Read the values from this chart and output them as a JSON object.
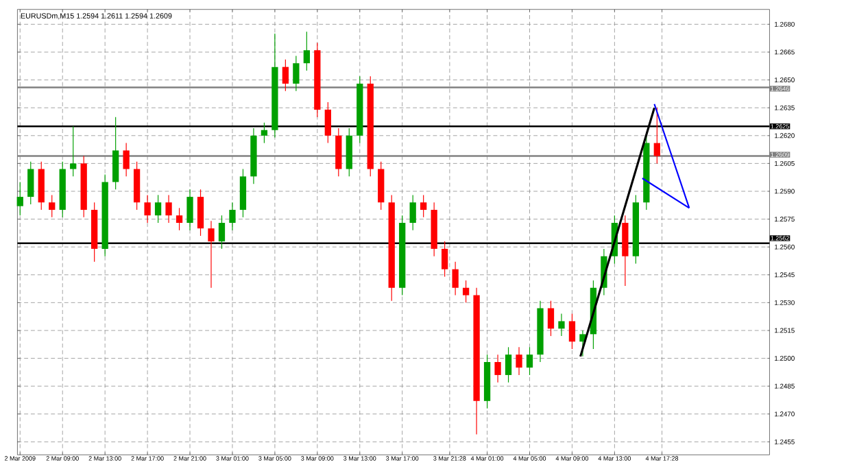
{
  "chart_data": {
    "type": "candlestick",
    "title": "EURUSDm,M15 1.2594 1.2611 1.2594 1.2609",
    "x": [
      "2009-03-02T05:00",
      "2009-03-02T06:00",
      "2009-03-02T07:00",
      "2009-03-02T08:00",
      "2009-03-02T09:00",
      "2009-03-02T10:00",
      "2009-03-02T11:00",
      "2009-03-02T12:00",
      "2009-03-02T13:00",
      "2009-03-02T14:00",
      "2009-03-02T15:00",
      "2009-03-02T16:00",
      "2009-03-02T17:00",
      "2009-03-02T18:00",
      "2009-03-02T19:00",
      "2009-03-02T20:00",
      "2009-03-02T21:00",
      "2009-03-02T22:00",
      "2009-03-02T23:00",
      "2009-03-03T00:00",
      "2009-03-03T01:00",
      "2009-03-03T02:00",
      "2009-03-03T03:00",
      "2009-03-03T04:00",
      "2009-03-03T05:00",
      "2009-03-03T06:00",
      "2009-03-03T07:00",
      "2009-03-03T08:00",
      "2009-03-03T09:00",
      "2009-03-03T10:00",
      "2009-03-03T11:00",
      "2009-03-03T12:00",
      "2009-03-03T13:00",
      "2009-03-03T14:00",
      "2009-03-03T15:00",
      "2009-03-03T16:00",
      "2009-03-03T17:00",
      "2009-03-03T18:00",
      "2009-03-03T19:00",
      "2009-03-03T20:00",
      "2009-03-03T21:00",
      "2009-03-03T22:00",
      "2009-03-03T23:00",
      "2009-03-04T00:00",
      "2009-03-04T01:00",
      "2009-03-04T02:00",
      "2009-03-04T03:00",
      "2009-03-04T04:00",
      "2009-03-04T05:00",
      "2009-03-04T06:00",
      "2009-03-04T07:00",
      "2009-03-04T08:00",
      "2009-03-04T09:00",
      "2009-03-04T10:00",
      "2009-03-04T11:00",
      "2009-03-04T12:00",
      "2009-03-04T13:00",
      "2009-03-04T14:00",
      "2009-03-04T15:00",
      "2009-03-04T16:00",
      "2009-03-04T17:00"
    ],
    "ohlc": [
      [
        1.2582,
        1.2595,
        1.2577,
        1.2587
      ],
      [
        1.2587,
        1.2606,
        1.2583,
        1.2602
      ],
      [
        1.2602,
        1.2606,
        1.258,
        1.2584
      ],
      [
        1.2584,
        1.2588,
        1.2576,
        1.258
      ],
      [
        1.258,
        1.2606,
        1.2576,
        1.2602
      ],
      [
        1.2602,
        1.2625,
        1.2598,
        1.2605
      ],
      [
        1.2605,
        1.2609,
        1.2576,
        1.258
      ],
      [
        1.258,
        1.2584,
        1.2552,
        1.2559
      ],
      [
        1.2559,
        1.2599,
        1.2555,
        1.2595
      ],
      [
        1.2595,
        1.263,
        1.2591,
        1.2612
      ],
      [
        1.2612,
        1.2616,
        1.2598,
        1.2602
      ],
      [
        1.2602,
        1.2606,
        1.258,
        1.2584
      ],
      [
        1.2584,
        1.2588,
        1.2573,
        1.2577
      ],
      [
        1.2577,
        1.2588,
        1.2573,
        1.2584
      ],
      [
        1.2584,
        1.2588,
        1.2573,
        1.2577
      ],
      [
        1.2577,
        1.2581,
        1.2569,
        1.2573
      ],
      [
        1.2573,
        1.2591,
        1.2569,
        1.2587
      ],
      [
        1.2587,
        1.2591,
        1.2566,
        1.257
      ],
      [
        1.257,
        1.2574,
        1.2538,
        1.2563
      ],
      [
        1.2563,
        1.2577,
        1.2559,
        1.2573
      ],
      [
        1.2573,
        1.2584,
        1.2569,
        1.258
      ],
      [
        1.258,
        1.2602,
        1.2576,
        1.2598
      ],
      [
        1.2598,
        1.2624,
        1.2594,
        1.262
      ],
      [
        1.262,
        1.2627,
        1.2616,
        1.2623
      ],
      [
        1.2623,
        1.2675,
        1.2619,
        1.2657
      ],
      [
        1.2657,
        1.2661,
        1.2644,
        1.2648
      ],
      [
        1.2648,
        1.2663,
        1.2644,
        1.2659
      ],
      [
        1.2659,
        1.2676,
        1.2655,
        1.2666
      ],
      [
        1.2666,
        1.267,
        1.263,
        1.2634
      ],
      [
        1.2634,
        1.2638,
        1.2616,
        1.262
      ],
      [
        1.262,
        1.2624,
        1.2598,
        1.2602
      ],
      [
        1.2602,
        1.2624,
        1.2598,
        1.262
      ],
      [
        1.262,
        1.2652,
        1.2616,
        1.2648
      ],
      [
        1.2648,
        1.2652,
        1.2598,
        1.2602
      ],
      [
        1.2602,
        1.2606,
        1.258,
        1.2584
      ],
      [
        1.2584,
        1.2588,
        1.2531,
        1.2538
      ],
      [
        1.2538,
        1.2577,
        1.2534,
        1.2573
      ],
      [
        1.2573,
        1.2588,
        1.2569,
        1.2584
      ],
      [
        1.2584,
        1.2588,
        1.2576,
        1.258
      ],
      [
        1.258,
        1.2584,
        1.2555,
        1.2559
      ],
      [
        1.2559,
        1.2563,
        1.2544,
        1.2548
      ],
      [
        1.2548,
        1.2552,
        1.2534,
        1.2538
      ],
      [
        1.2538,
        1.2542,
        1.253,
        1.2534
      ],
      [
        1.2534,
        1.2538,
        1.2459,
        1.2477
      ],
      [
        1.2477,
        1.2502,
        1.2473,
        1.2498
      ],
      [
        1.2498,
        1.2502,
        1.2487,
        1.2491
      ],
      [
        1.2491,
        1.2506,
        1.2487,
        1.2502
      ],
      [
        1.2502,
        1.2506,
        1.2491,
        1.2495
      ],
      [
        1.2495,
        1.2506,
        1.2491,
        1.2502
      ],
      [
        1.2502,
        1.2531,
        1.2498,
        1.2527
      ],
      [
        1.2527,
        1.2531,
        1.2512,
        1.2516
      ],
      [
        1.2516,
        1.2524,
        1.2512,
        1.252
      ],
      [
        1.252,
        1.2524,
        1.2505,
        1.2509
      ],
      [
        1.2509,
        1.2515,
        1.2501,
        1.2513
      ],
      [
        1.2513,
        1.2542,
        1.2505,
        1.2538
      ],
      [
        1.2538,
        1.2559,
        1.2534,
        1.2555
      ],
      [
        1.2555,
        1.2577,
        1.2551,
        1.2573
      ],
      [
        1.2573,
        1.2577,
        1.2539,
        1.2555
      ],
      [
        1.2555,
        1.2588,
        1.2551,
        1.2584
      ],
      [
        1.2584,
        1.262,
        1.258,
        1.2616
      ],
      [
        1.2616,
        1.2635,
        1.2605,
        1.2609
      ]
    ],
    "colors": [
      "#00a000",
      "#00a000",
      "#ff0000",
      "#ff0000",
      "#00a000",
      "#00a000",
      "#ff0000",
      "#ff0000",
      "#00a000",
      "#00a000",
      "#ff0000",
      "#ff0000",
      "#ff0000",
      "#00a000",
      "#ff0000",
      "#ff0000",
      "#00a000",
      "#ff0000",
      "#ff0000",
      "#00a000",
      "#00a000",
      "#00a000",
      "#00a000",
      "#00a000",
      "#00a000",
      "#ff0000",
      "#00a000",
      "#00a000",
      "#ff0000",
      "#ff0000",
      "#ff0000",
      "#00a000",
      "#00a000",
      "#ff0000",
      "#ff0000",
      "#ff0000",
      "#00a000",
      "#00a000",
      "#ff0000",
      "#ff0000",
      "#ff0000",
      "#ff0000",
      "#ff0000",
      "#ff0000",
      "#00a000",
      "#ff0000",
      "#00a000",
      "#ff0000",
      "#00a000",
      "#00a000",
      "#ff0000",
      "#00a000",
      "#ff0000",
      "#00a000",
      "#00a000",
      "#00a000",
      "#00a000",
      "#ff0000",
      "#00a000",
      "#00a000",
      "#ff0000"
    ],
    "series": [
      {
        "type": "line",
        "color": "#000000",
        "x": [
          "2009-03-04T09:47",
          "2009-03-04T16:45"
        ],
        "values": [
          1.2501,
          1.2635
        ]
      },
      {
        "type": "line",
        "color": "#0000ff",
        "x": [
          "2009-03-04T16:45",
          "2009-03-04T20:02"
        ],
        "values": [
          1.2637,
          1.2581
        ]
      },
      {
        "type": "line",
        "color": "#0000ff",
        "x": [
          "2009-03-04T15:37",
          "2009-03-04T20:02"
        ],
        "values": [
          1.2597,
          1.2581
        ]
      }
    ],
    "xlim": [
      "2009-03-02T04:45",
      "2009-03-05T03:36"
    ],
    "xticks": [
      {
        "value": "2009-03-02T05:00",
        "label": "2 Mar 2009"
      },
      {
        "value": "2009-03-02T09:00",
        "label": "2 Mar 09:00"
      },
      {
        "value": "2009-03-02T13:00",
        "label": "2 Mar 13:00"
      },
      {
        "value": "2009-03-02T17:00",
        "label": "2 Mar 17:00"
      },
      {
        "value": "2009-03-02T21:00",
        "label": "2 Mar 21:00"
      },
      {
        "value": "2009-03-03T01:00",
        "label": "3 Mar 01:00"
      },
      {
        "value": "2009-03-03T05:00",
        "label": "3 Mar 05:00"
      },
      {
        "value": "2009-03-03T09:00",
        "label": "3 Mar 09:00"
      },
      {
        "value": "2009-03-03T13:00",
        "label": "3 Mar 13:00"
      },
      {
        "value": "2009-03-03T17:00",
        "label": "3 Mar 17:00"
      },
      {
        "value": "2009-03-03T21:28",
        "label": "3 Mar 21:28"
      },
      {
        "value": "2009-03-04T01:00",
        "label": "4 Mar 01:00"
      },
      {
        "value": "2009-03-04T05:00",
        "label": "4 Mar 05:00"
      },
      {
        "value": "2009-03-04T09:00",
        "label": "4 Mar 09:00"
      },
      {
        "value": "2009-03-04T13:00",
        "label": "4 Mar 13:00"
      },
      {
        "value": "2009-03-04T17:28",
        "label": "4 Mar 17:28"
      }
    ],
    "ylim": [
      1.2448,
      1.2688
    ],
    "yticks": [
      {
        "value": 1.2455,
        "label": "1.2455"
      },
      {
        "value": 1.247,
        "label": "1.2470"
      },
      {
        "value": 1.2485,
        "label": "1.2485"
      },
      {
        "value": 1.25,
        "label": "1.2500"
      },
      {
        "value": 1.2515,
        "label": "1.2515"
      },
      {
        "value": 1.253,
        "label": "1.2530"
      },
      {
        "value": 1.2545,
        "label": "1.2545"
      },
      {
        "value": 1.256,
        "label": "1.2560"
      },
      {
        "value": 1.2575,
        "label": "1.2575"
      },
      {
        "value": 1.259,
        "label": "1.2590"
      },
      {
        "value": 1.2605,
        "label": "1.2605"
      },
      {
        "value": 1.262,
        "label": "1.2620"
      },
      {
        "value": 1.2635,
        "label": "1.2635"
      },
      {
        "value": 1.265,
        "label": "1.2650"
      },
      {
        "value": 1.2665,
        "label": "1.2665"
      },
      {
        "value": 1.268,
        "label": "1.2680"
      }
    ],
    "ref_lines": [
      {
        "axis": "y",
        "value": 1.2646,
        "label": "1.2646",
        "color": "#808080"
      },
      {
        "axis": "y",
        "value": 1.2625,
        "label": "1.2625",
        "color": "#000000"
      },
      {
        "axis": "y",
        "value": 1.2609,
        "label": "1.2609",
        "color": "#808080"
      },
      {
        "axis": "y",
        "value": 1.2562,
        "label": "1.2562",
        "color": "#000000"
      }
    ],
    "grid": true
  }
}
